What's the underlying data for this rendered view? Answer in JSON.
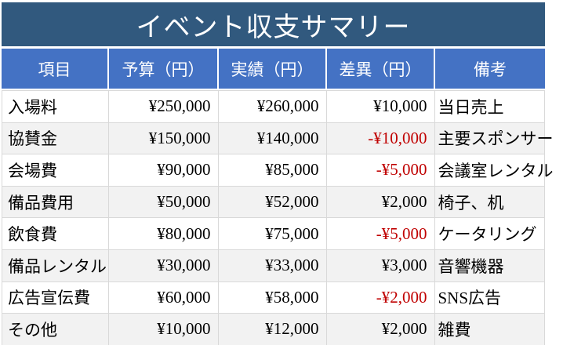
{
  "title": "イベント収支サマリー",
  "table": {
    "headers": [
      "項目",
      "予算（円）",
      "実績（円）",
      "差異（円）",
      "備考"
    ],
    "rows": [
      {
        "item": "入場料",
        "budget": "¥250,000",
        "actual": "¥260,000",
        "diff": "¥10,000",
        "note": "当日売上"
      },
      {
        "item": "協賛金",
        "budget": "¥150,000",
        "actual": "¥140,000",
        "diff": "-¥10,000",
        "note": "主要スポンサー"
      },
      {
        "item": "会場費",
        "budget": "¥90,000",
        "actual": "¥85,000",
        "diff": "-¥5,000",
        "note": "会議室レンタル"
      },
      {
        "item": "備品費用",
        "budget": "¥50,000",
        "actual": "¥52,000",
        "diff": "¥2,000",
        "note": "椅子、机"
      },
      {
        "item": "飲食費",
        "budget": "¥80,000",
        "actual": "¥75,000",
        "diff": "-¥5,000",
        "note": "ケータリング"
      },
      {
        "item": "備品レンタル",
        "budget": "¥30,000",
        "actual": "¥33,000",
        "diff": "¥3,000",
        "note": "音響機器"
      },
      {
        "item": "広告宣伝費",
        "budget": "¥60,000",
        "actual": "¥58,000",
        "diff": "-¥2,000",
        "note": "SNS広告"
      },
      {
        "item": "その他",
        "budget": "¥10,000",
        "actual": "¥12,000",
        "diff": "¥2,000",
        "note": "雑費"
      }
    ]
  },
  "colors": {
    "title_bg": "#31597E",
    "header_bg": "#4472C4",
    "alt_row_bg": "#F2F2F2",
    "grid_border": "#D9D9D9",
    "negative": "#C00000"
  }
}
